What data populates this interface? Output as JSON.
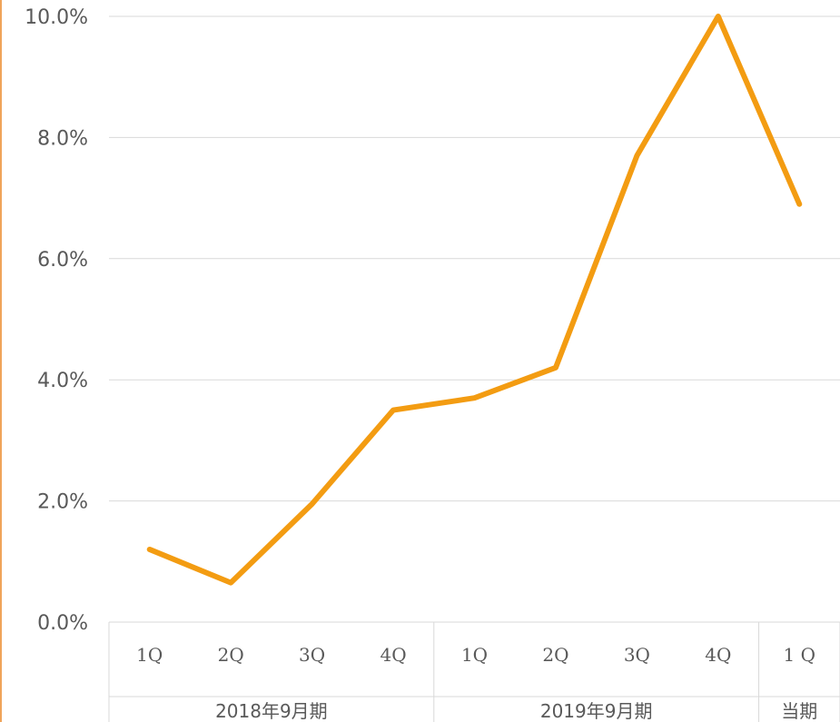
{
  "chart_data": {
    "type": "line",
    "title": "",
    "xlabel": "",
    "ylabel": "",
    "ylim": [
      0,
      10
    ],
    "yticks": [
      "0.0%",
      "2.0%",
      "4.0%",
      "6.0%",
      "8.0%",
      "10.0%"
    ],
    "ytick_values": [
      0,
      2,
      4,
      6,
      8,
      10
    ],
    "grid": true,
    "categories": [
      "1Q",
      "2Q",
      "3Q",
      "4Q",
      "1Q",
      "2Q",
      "3Q",
      "4Q",
      "1 Q"
    ],
    "groups": [
      {
        "label": "2018年9月期",
        "span": 4
      },
      {
        "label": "2019年9月期",
        "span": 4
      },
      {
        "label": "当期",
        "span": 1
      }
    ],
    "series": [
      {
        "values": [
          1.2,
          0.65,
          1.95,
          3.5,
          3.7,
          4.2,
          7.7,
          10.0,
          6.9
        ]
      }
    ],
    "colors": {
      "line": "#f39c12",
      "grid": "#d9d9d9",
      "text": "#595959",
      "edge": "#f0a45a"
    }
  }
}
